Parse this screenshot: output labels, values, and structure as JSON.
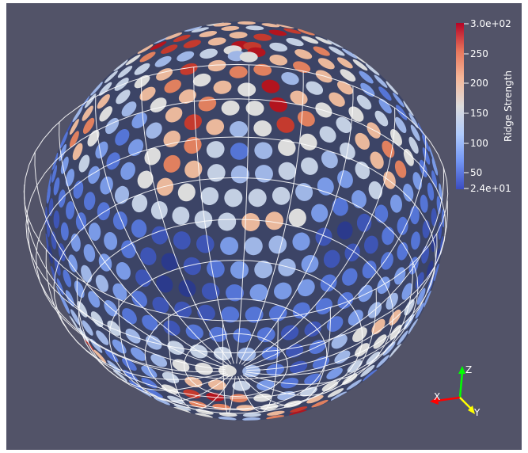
{
  "colorbar": {
    "title": "Ridge Strength",
    "max_label": "3.0e+02",
    "min_label": "2.4e+01",
    "tick_labels": [
      "250",
      "200",
      "150",
      "100",
      "50"
    ],
    "range": [
      24,
      300
    ],
    "colors": [
      "#3b4cc0",
      "#7396f5",
      "#b0cbfc",
      "#dddcdc",
      "#f6b799",
      "#e8765c",
      "#b40426"
    ]
  },
  "orientation_axes": {
    "x_label": "X",
    "y_label": "Y",
    "z_label": "Z",
    "x_color": "#ff0000",
    "y_color": "#ffff00",
    "z_color": "#00ff00"
  },
  "background_color": "#525368"
}
